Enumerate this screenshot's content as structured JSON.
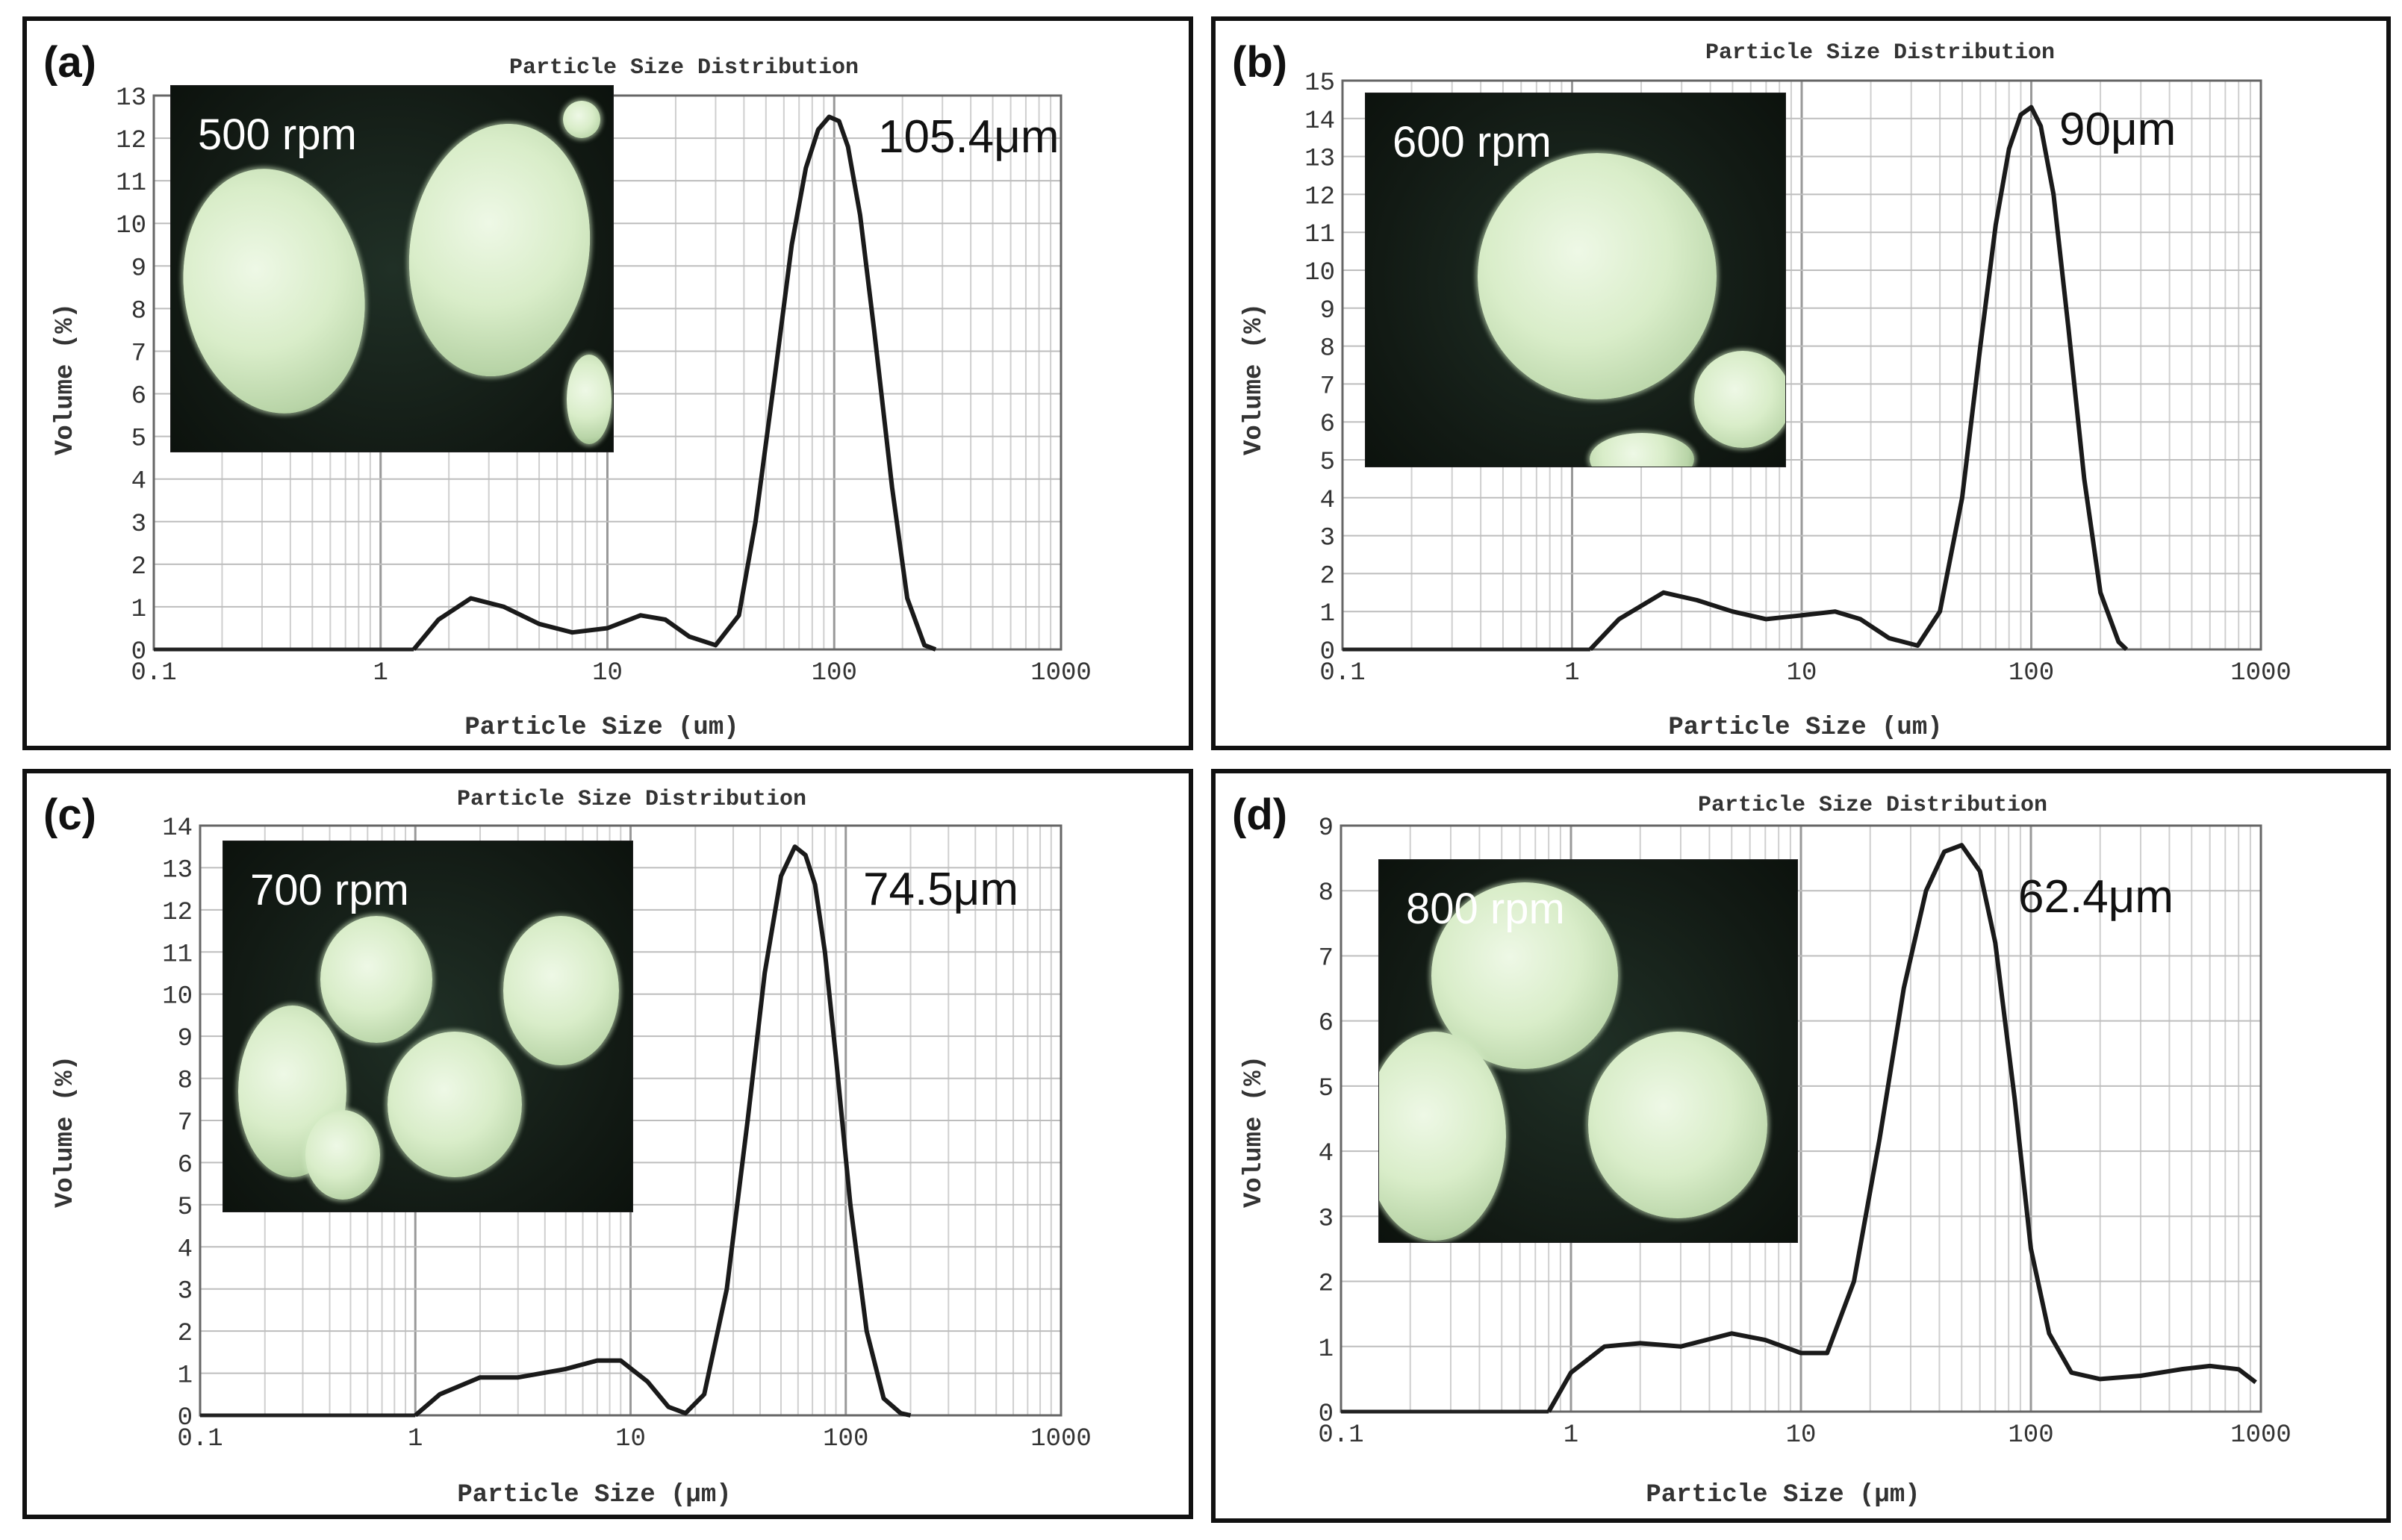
{
  "chart_data": [
    {
      "panel": "(a)",
      "type": "line",
      "title": "Particle Size Distribution",
      "xlabel": "Particle Size (um)",
      "ylabel": "Volume (%)",
      "x_scale": "log",
      "xlim": [
        0.1,
        1000
      ],
      "ylim": [
        0,
        13
      ],
      "x_ticks": [
        "0.1",
        "1",
        "10",
        "100",
        "1000"
      ],
      "y_ticks": [
        "0",
        "1",
        "2",
        "3",
        "4",
        "5",
        "6",
        "7",
        "8",
        "9",
        "10",
        "11",
        "12",
        "13"
      ],
      "grid": true,
      "inset_label": "500 rpm",
      "peak_label": "105.4μm",
      "x": [
        1.4,
        1.8,
        2.5,
        3.5,
        5,
        7,
        10,
        14,
        18,
        23,
        30,
        38,
        45,
        55,
        65,
        75,
        85,
        95,
        105,
        115,
        130,
        150,
        180,
        210,
        250,
        280
      ],
      "y": [
        0,
        0.7,
        1.2,
        1.0,
        0.6,
        0.4,
        0.5,
        0.8,
        0.7,
        0.3,
        0.1,
        0.8,
        3.0,
        6.5,
        9.5,
        11.3,
        12.2,
        12.5,
        12.4,
        11.8,
        10.2,
        7.5,
        3.8,
        1.2,
        0.1,
        0
      ]
    },
    {
      "panel": "(b)",
      "type": "line",
      "title": "Particle Size Distribution",
      "xlabel": "Particle Size (um)",
      "ylabel": "Volume (%)",
      "x_scale": "log",
      "xlim": [
        0.1,
        1000
      ],
      "ylim": [
        0,
        15
      ],
      "x_ticks": [
        "0.1",
        "1",
        "10",
        "100",
        "1000"
      ],
      "y_ticks": [
        "0",
        "1",
        "2",
        "3",
        "4",
        "5",
        "6",
        "7",
        "8",
        "9",
        "10",
        "11",
        "12",
        "13",
        "14",
        "15"
      ],
      "grid": true,
      "inset_label": "600 rpm",
      "peak_label": "90μm",
      "x": [
        1.2,
        1.6,
        2.5,
        3.5,
        5,
        7,
        10,
        14,
        18,
        24,
        32,
        40,
        50,
        60,
        70,
        80,
        90,
        100,
        110,
        125,
        145,
        170,
        200,
        240,
        260
      ],
      "y": [
        0,
        0.8,
        1.5,
        1.3,
        1.0,
        0.8,
        0.9,
        1.0,
        0.8,
        0.3,
        0.1,
        1.0,
        4.0,
        8.0,
        11.2,
        13.2,
        14.1,
        14.3,
        13.8,
        12.0,
        8.5,
        4.5,
        1.5,
        0.2,
        0
      ]
    },
    {
      "panel": "(c)",
      "type": "line",
      "title": "Particle Size Distribution",
      "xlabel": "Particle Size (μm)",
      "ylabel": "Volume (%)",
      "x_scale": "log",
      "xlim": [
        0.1,
        1000
      ],
      "ylim": [
        0,
        14
      ],
      "x_ticks": [
        "0.1",
        "1",
        "10",
        "100",
        "1000"
      ],
      "y_ticks": [
        "0",
        "1",
        "2",
        "3",
        "4",
        "5",
        "6",
        "7",
        "8",
        "9",
        "10",
        "11",
        "12",
        "13",
        "14"
      ],
      "grid": true,
      "inset_label": "700 rpm",
      "peak_label": "74.5μm",
      "x": [
        1,
        1.3,
        2,
        3,
        5,
        7,
        9,
        12,
        15,
        18,
        22,
        28,
        35,
        42,
        50,
        58,
        65,
        72,
        80,
        90,
        105,
        125,
        150,
        180,
        200
      ],
      "y": [
        0,
        0.5,
        0.9,
        0.9,
        1.1,
        1.3,
        1.3,
        0.8,
        0.2,
        0.05,
        0.5,
        3.0,
        7.0,
        10.5,
        12.8,
        13.5,
        13.3,
        12.6,
        11.0,
        8.5,
        5.0,
        2.0,
        0.4,
        0.05,
        0
      ]
    },
    {
      "panel": "(d)",
      "type": "line",
      "title": "Particle Size Distribution",
      "xlabel": "Particle Size (μm)",
      "ylabel": "Volume (%)",
      "x_scale": "log",
      "xlim": [
        0.1,
        1000
      ],
      "ylim": [
        0,
        9
      ],
      "x_ticks": [
        "0.1",
        "1",
        "10",
        "100",
        "1000"
      ],
      "y_ticks": [
        "0",
        "1",
        "2",
        "3",
        "4",
        "5",
        "6",
        "7",
        "8",
        "9"
      ],
      "grid": true,
      "inset_label": "800 rpm",
      "peak_label": "62.4μm",
      "x": [
        0.8,
        1,
        1.4,
        2,
        3,
        5,
        7,
        10,
        13,
        17,
        22,
        28,
        35,
        42,
        50,
        60,
        70,
        85,
        100,
        120,
        150,
        200,
        300,
        450,
        600,
        800,
        950
      ],
      "y": [
        0,
        0.6,
        1.0,
        1.05,
        1.0,
        1.2,
        1.1,
        0.9,
        0.9,
        2.0,
        4.2,
        6.5,
        8.0,
        8.6,
        8.7,
        8.3,
        7.2,
        4.8,
        2.5,
        1.2,
        0.6,
        0.5,
        0.55,
        0.65,
        0.7,
        0.65,
        0.45
      ]
    }
  ]
}
